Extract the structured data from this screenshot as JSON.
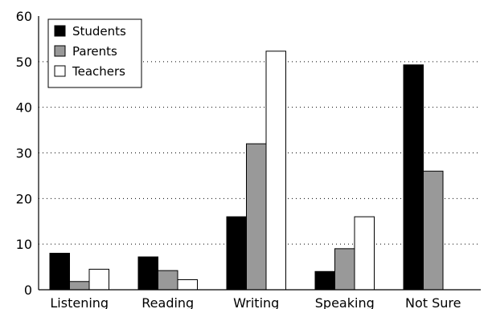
{
  "chart_data": {
    "type": "bar",
    "categories": [
      "Listening",
      "Reading",
      "Writing",
      "Speaking",
      "Not Sure"
    ],
    "series": [
      {
        "name": "Students",
        "color": "#000000",
        "values": [
          8,
          7.2,
          16,
          4,
          49.3
        ]
      },
      {
        "name": "Parents",
        "color": "#999999",
        "values": [
          1.8,
          4.2,
          32,
          9,
          26
        ]
      },
      {
        "name": "Teachers",
        "color": "#ffffff",
        "values": [
          4.5,
          2.2,
          52.3,
          16,
          0
        ]
      }
    ],
    "title": "",
    "xlabel": "",
    "ylabel": "",
    "ylim": [
      0,
      60
    ],
    "yticks": [
      0,
      10,
      20,
      30,
      40,
      50,
      60
    ],
    "grid": "horizontal-dotted",
    "legend_position": "top-left"
  }
}
